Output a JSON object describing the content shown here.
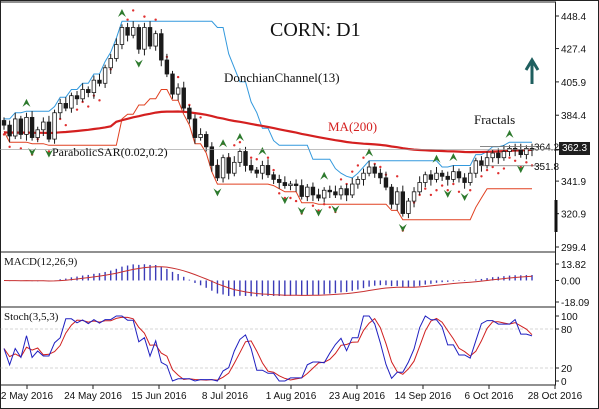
{
  "chart_data": [
    {
      "type": "candlestick",
      "title": "CORN: D1",
      "symbol": "CORN",
      "timeframe": "D1",
      "y_ticks": [
        "448.4",
        "427.4",
        "405.9",
        "384.4",
        "362.3",
        "341.9",
        "320.9",
        "299.4"
      ],
      "ylim": [
        299.4,
        448.4
      ],
      "current_price": "362.3",
      "x_ticks": [
        "2 May 2016",
        "24 May 2016",
        "15 Jun 2016",
        "8 Jul 2016",
        "1 Aug 2016",
        "23 Aug 2016",
        "14 Sep 2016",
        "6 Oct 2016",
        "28 Oct 2016"
      ],
      "price_levels": [
        {
          "label": "364.2",
          "value": 364.2
        },
        {
          "label": "351.8",
          "value": 351.8
        }
      ],
      "annotations": {
        "donchian": "DonchianChannel(13)",
        "ma": "MA(200)",
        "psar": "ParabolicSAR(0.02,0.2)",
        "fractals": "Fractals"
      },
      "close": [
        378,
        371,
        382,
        372,
        383,
        370,
        375,
        380,
        369,
        386,
        392,
        389,
        397,
        395,
        401,
        399,
        407,
        405,
        415,
        421,
        430,
        441,
        436,
        441,
        427,
        441,
        429,
        437,
        420,
        411,
        398,
        402,
        389,
        382,
        370,
        372,
        364,
        352,
        344,
        357,
        347,
        354,
        361,
        352,
        349,
        347,
        352,
        346,
        343,
        341,
        339,
        340,
        339,
        332,
        338,
        333,
        331,
        336,
        335,
        333,
        337,
        333,
        340,
        343,
        347,
        351,
        347,
        344,
        338,
        327,
        335,
        321,
        329,
        335,
        341,
        346,
        343,
        347,
        345,
        343,
        348,
        344,
        341,
        347,
        355,
        352,
        357,
        360,
        357,
        361,
        363,
        362,
        359,
        363,
        362
      ]
    },
    {
      "type": "line",
      "title": "MACD(12,26,9)",
      "y_ticks": [
        "13.82",
        "0.00",
        "-18.09"
      ],
      "ylim": [
        -18.09,
        13.82
      ]
    },
    {
      "type": "line",
      "title": "Stoch(3,5,3)",
      "y_ticks": [
        "100",
        "80",
        "20",
        "0"
      ],
      "ylim": [
        0,
        100
      ]
    }
  ],
  "colors": {
    "background": "#ffffff",
    "ma": "#d42020",
    "psar": "#e03030",
    "donchian_upper": "#3399dd",
    "donchian_lower": "#e04020",
    "macd_bars": "#3b3bb8",
    "macd_signal": "#c83030",
    "stoch_k": "#2020c0",
    "stoch_d": "#d02020",
    "fractal": "#2d7a2d",
    "arrow": "#1f5f5f",
    "candle": "#1a1a1a"
  }
}
